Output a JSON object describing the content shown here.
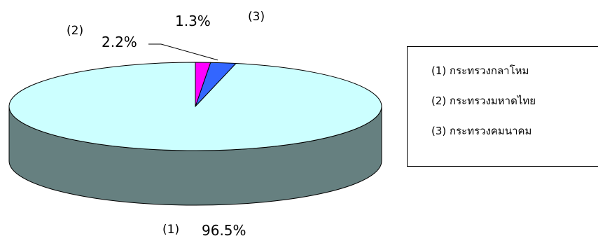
{
  "chart_data": {
    "type": "pie",
    "style": "3d",
    "title": "",
    "slices": [
      {
        "index": "(1)",
        "label": "(1) กระทรวงกลาโหม",
        "value": 96.5,
        "value_label": "96.5%",
        "top_color": "#CCFFFF",
        "side_color": "#668080"
      },
      {
        "index": "(2)",
        "label": "(2) กระทรวงมหาดไทย",
        "value": 2.2,
        "value_label": "2.2%",
        "top_color": "#3366FF",
        "side_color": "#1A3380"
      },
      {
        "index": "(3)",
        "label": "(3) กระทรวงคมนาคม",
        "value": 1.3,
        "value_label": "1.3%",
        "top_color": "#FF00FF",
        "side_color": "#800080"
      }
    ],
    "legend_position": "right"
  }
}
